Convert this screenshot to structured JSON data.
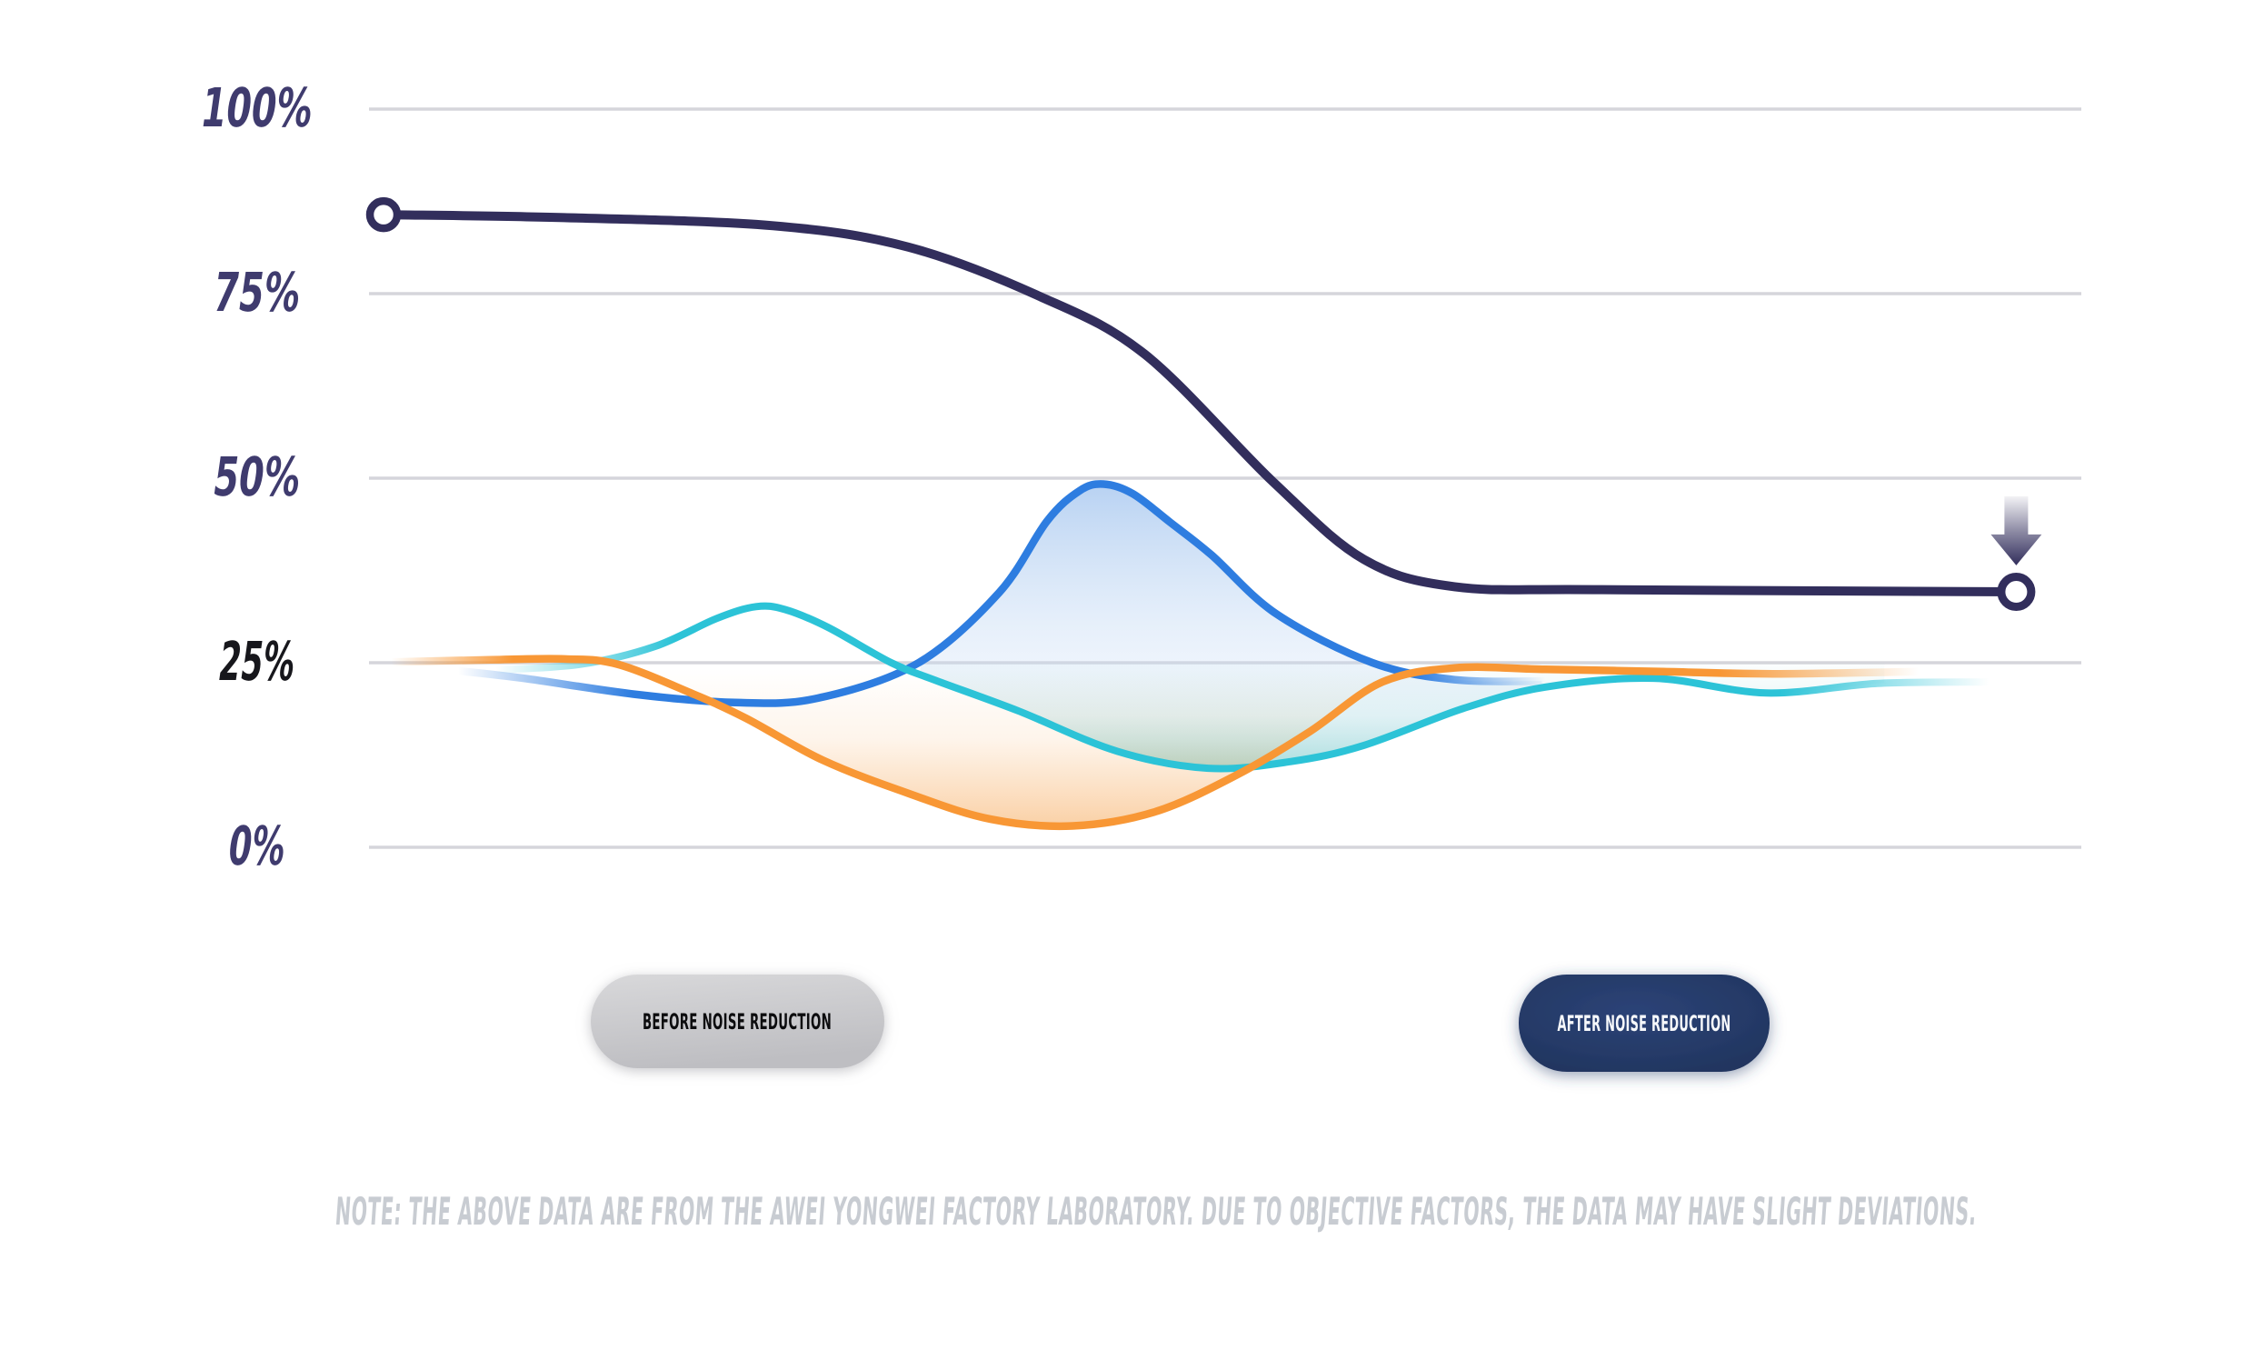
{
  "page": {
    "background": "#ffffff"
  },
  "chart_data": {
    "type": "line",
    "title": "",
    "xlabel": "",
    "ylabel": "",
    "ylim": [
      0,
      100
    ],
    "grid": true,
    "legend_position": "none",
    "y_ticks": [
      {
        "label": "100%",
        "value": 100,
        "color": "#3f3b6e"
      },
      {
        "label": "75%",
        "value": 75,
        "color": "#3f3b6e"
      },
      {
        "label": "50%",
        "value": 50,
        "color": "#3f3b6e"
      },
      {
        "label": "25%",
        "value": 25,
        "color": "#17171c"
      },
      {
        "label": "0%",
        "value": 0,
        "color": "#3f3b6e"
      }
    ],
    "series": [
      {
        "name": "noise-level",
        "color": "#322e5c",
        "width": 10,
        "marker_start": {
          "x": 0.85,
          "y": 85.7
        },
        "marker_end": {
          "x": 96.2,
          "y": 34.6
        },
        "points": [
          [
            0.85,
            85.7
          ],
          [
            11.4,
            85.3
          ],
          [
            23.6,
            84.2
          ],
          [
            31.5,
            81.3
          ],
          [
            39.0,
            74.8
          ],
          [
            45.3,
            66.8
          ],
          [
            52.8,
            49.5
          ],
          [
            58.1,
            39.0
          ],
          [
            63.4,
            35.3
          ],
          [
            72.0,
            34.9
          ],
          [
            96.2,
            34.6
          ]
        ]
      },
      {
        "name": "blue-wave",
        "color": "#2e7de0",
        "width": 8.5,
        "fade": [
          0.0,
          0.16,
          0.88,
          1.0
        ],
        "points": [
          [
            5.2,
            23.9
          ],
          [
            9.0,
            22.9
          ],
          [
            15.6,
            20.7
          ],
          [
            21.4,
            19.6
          ],
          [
            26.2,
            20.2
          ],
          [
            32.1,
            25.0
          ],
          [
            36.8,
            34.5
          ],
          [
            39.6,
            44.2
          ],
          [
            41.5,
            48.3
          ],
          [
            42.9,
            49.2
          ],
          [
            44.6,
            47.9
          ],
          [
            46.8,
            44.0
          ],
          [
            49.2,
            39.6
          ],
          [
            53.0,
            31.6
          ],
          [
            58.6,
            25.0
          ],
          [
            63.4,
            22.7
          ],
          [
            68.7,
            22.5
          ]
        ]
      },
      {
        "name": "cyan-wave",
        "color": "#2cc3d7",
        "width": 8,
        "fade": [
          0.0,
          0.12,
          0.86,
          1.0
        ],
        "points": [
          [
            7.4,
            24.0
          ],
          [
            12.4,
            24.8
          ],
          [
            16.7,
            27.2
          ],
          [
            20.3,
            31.0
          ],
          [
            22.6,
            32.6
          ],
          [
            24.3,
            32.2
          ],
          [
            26.8,
            29.8
          ],
          [
            30.5,
            25.0
          ],
          [
            33.1,
            22.6
          ],
          [
            37.9,
            18.5
          ],
          [
            43.7,
            13.0
          ],
          [
            49.0,
            10.7
          ],
          [
            53.8,
            11.6
          ],
          [
            58.1,
            13.8
          ],
          [
            63.9,
            18.8
          ],
          [
            68.7,
            21.7
          ],
          [
            75.0,
            22.9
          ],
          [
            81.6,
            20.9
          ],
          [
            88.1,
            22.2
          ],
          [
            94.6,
            22.4
          ]
        ]
      },
      {
        "name": "orange-wave",
        "color": "#f89735",
        "width": 8.5,
        "fade": [
          0.0,
          0.08,
          0.87,
          1.0
        ],
        "points": [
          [
            1.3,
            25.1
          ],
          [
            7.1,
            25.4
          ],
          [
            11.4,
            25.5
          ],
          [
            14.5,
            24.8
          ],
          [
            18.8,
            20.9
          ],
          [
            22.0,
            17.5
          ],
          [
            26.5,
            11.8
          ],
          [
            31.5,
            7.3
          ],
          [
            36.3,
            3.8
          ],
          [
            41.1,
            2.9
          ],
          [
            45.9,
            4.8
          ],
          [
            50.6,
            9.7
          ],
          [
            54.9,
            15.6
          ],
          [
            59.1,
            22.3
          ],
          [
            63.4,
            24.3
          ],
          [
            68.7,
            24.1
          ],
          [
            75.6,
            23.8
          ],
          [
            82.0,
            23.5
          ],
          [
            90.5,
            23.8
          ]
        ]
      }
    ],
    "fills": [
      {
        "name": "blue-bell-fill",
        "upper": "blue-wave",
        "lower": "cyan-wave",
        "from": 32.2,
        "to": 68.5,
        "gradient": "bellGrad"
      },
      {
        "name": "teal-dip-fill",
        "upper": "baseline-25",
        "lower": "cyan-wave",
        "from": 31.8,
        "to": 88.5,
        "gradient": "tealGrad"
      },
      {
        "name": "orange-dip-fill",
        "upper": "baseline-25",
        "lower": "orange-wave",
        "from": 13.8,
        "to": 60.5,
        "gradient": "orangeGrad"
      }
    ],
    "annotations": [
      {
        "type": "arrow-down",
        "x": 96.2,
        "tip_y": 38.2
      }
    ]
  },
  "buttons": [
    {
      "label": "BEFORE NOISE REDUCTION",
      "state": "inactive",
      "bg": "#c9c9cc",
      "text_color": "#0c0c0e"
    },
    {
      "label": "AFTER NOISE REDUCTION",
      "state": "active",
      "bg": "#24386a",
      "text_color": "#f6f8fb"
    }
  ],
  "note": {
    "text": "NOTE: THE ABOVE DATA ARE FROM THE AWEI YONGWEI FACTORY LABORATORY. DUE TO OBJECTIVE FACTORS, THE DATA MAY HAVE SLIGHT DEVIATIONS.",
    "color": "#c8ccd2"
  }
}
